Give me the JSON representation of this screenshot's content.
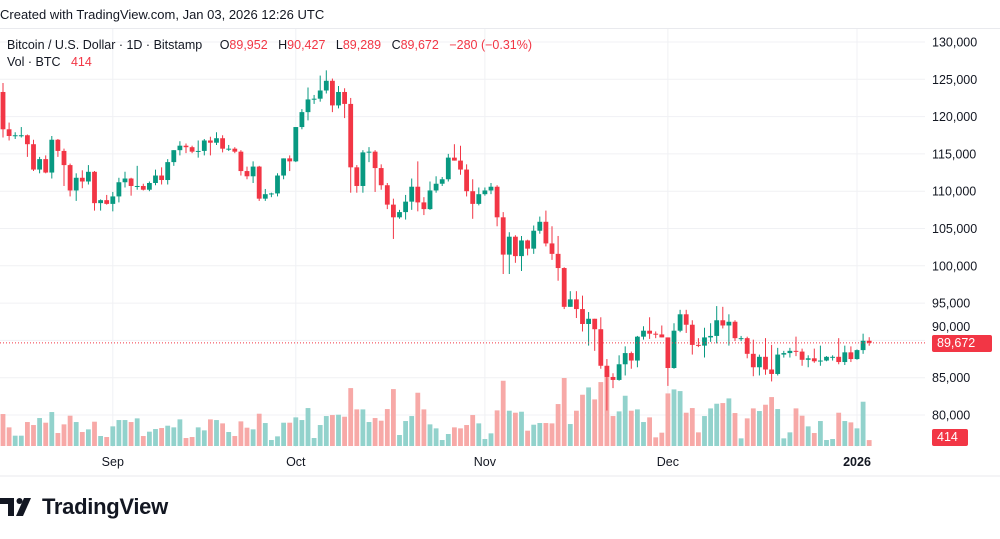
{
  "header": {
    "created_text": "Created with TradingView.com, Jan 03, 2026 12:26 UTC"
  },
  "legend": {
    "symbol": "Bitcoin / U.S. Dollar · 1D · Bitstamp",
    "open_label": "O",
    "open": "89,952",
    "high_label": "H",
    "high": "90,427",
    "low_label": "L",
    "low": "89,289",
    "close_label": "C",
    "close": "89,672",
    "change": "−280 (−0.31%)",
    "volume_label": "Vol · BTC",
    "volume": "414"
  },
  "price_tag": "89,672",
  "volume_tag": "414",
  "footer": {
    "brand": "TradingView"
  },
  "colors": {
    "up": "#089981",
    "down": "#f23645",
    "up_volume": "#92d2cc",
    "down_volume": "#f7a9a7",
    "grid": "#f0f1f4"
  },
  "chart_data": {
    "type": "candlestick",
    "title": "Bitcoin / U.S. Dollar · 1D · Bitstamp",
    "xlabel": "",
    "ylabel": "",
    "ylim": [
      77000,
      131500
    ],
    "y_ticks": [
      "130,000",
      "125,000",
      "120,000",
      "115,000",
      "110,000",
      "105,000",
      "100,000",
      "95,000",
      "90,000",
      "85,000",
      "80,000"
    ],
    "y_tick_values": [
      130000,
      125000,
      120000,
      115000,
      110000,
      105000,
      100000,
      95000,
      90000,
      85000,
      80000
    ],
    "x_ticks": [
      {
        "label": "Sep",
        "date": "2025-09-01"
      },
      {
        "label": "Oct",
        "date": "2025-10-01"
      },
      {
        "label": "Nov",
        "date": "2025-11-01"
      },
      {
        "label": "Dec",
        "date": "2025-12-01"
      },
      {
        "label": "2026",
        "date": "2026-01-01",
        "bold": true
      }
    ],
    "start_date": "2025-08-14",
    "last_price": 89672,
    "grid": true,
    "columns": [
      "open",
      "high",
      "low",
      "close",
      "volume"
    ],
    "candles": [
      [
        123300,
        124500,
        117200,
        118300,
        2237
      ],
      [
        118300,
        119200,
        116800,
        117400,
        1305
      ],
      [
        117400,
        117900,
        117000,
        117500,
        722
      ],
      [
        117500,
        118600,
        117200,
        117500,
        722
      ],
      [
        117500,
        117600,
        114600,
        116300,
        1678
      ],
      [
        116300,
        116900,
        112700,
        112900,
        1468
      ],
      [
        112900,
        114600,
        112400,
        114300,
        1957
      ],
      [
        114300,
        114800,
        112400,
        112500,
        1631
      ],
      [
        112500,
        117400,
        111700,
        116900,
        2377
      ],
      [
        116900,
        117000,
        114600,
        115400,
        909
      ],
      [
        115400,
        115700,
        110700,
        113500,
        1515
      ],
      [
        113500,
        113700,
        109300,
        110100,
        2120
      ],
      [
        110100,
        112400,
        108700,
        111800,
        1678
      ],
      [
        111800,
        112800,
        110400,
        111300,
        979
      ],
      [
        111300,
        113500,
        110900,
        112600,
        1165
      ],
      [
        112600,
        112700,
        107400,
        108400,
        1701
      ],
      [
        108400,
        108900,
        107400,
        108800,
        699
      ],
      [
        108800,
        109500,
        108200,
        108300,
        629
      ],
      [
        108300,
        109900,
        107300,
        109300,
        1375
      ],
      [
        109300,
        111800,
        108500,
        111200,
        1817
      ],
      [
        111200,
        112600,
        110500,
        111700,
        1817
      ],
      [
        111700,
        111800,
        109400,
        110700,
        1678
      ],
      [
        110700,
        113400,
        110200,
        110700,
        1934
      ],
      [
        110700,
        111000,
        110100,
        110200,
        699
      ],
      [
        110200,
        111300,
        110000,
        111100,
        1002
      ],
      [
        111100,
        112900,
        110800,
        112100,
        1188
      ],
      [
        112100,
        113200,
        110900,
        111500,
        1258
      ],
      [
        111500,
        114300,
        110900,
        113900,
        1421
      ],
      [
        113900,
        115500,
        113400,
        115500,
        1305
      ],
      [
        115500,
        116700,
        114800,
        116100,
        1864
      ],
      [
        116100,
        116400,
        115100,
        115900,
        559
      ],
      [
        115900,
        116100,
        115100,
        115300,
        629
      ],
      [
        115300,
        116800,
        114500,
        115400,
        1305
      ],
      [
        115400,
        117000,
        114800,
        116800,
        1095
      ],
      [
        116800,
        117300,
        114800,
        116500,
        1864
      ],
      [
        116500,
        117900,
        116200,
        117100,
        1817
      ],
      [
        117100,
        117500,
        115200,
        115700,
        1584
      ],
      [
        115700,
        116200,
        115400,
        115700,
        979
      ],
      [
        115700,
        115900,
        115100,
        115300,
        699
      ],
      [
        115300,
        115500,
        112100,
        112700,
        1724
      ],
      [
        112700,
        113300,
        111600,
        112000,
        1282
      ],
      [
        112000,
        114000,
        111100,
        113300,
        1165
      ],
      [
        113300,
        113400,
        108700,
        109000,
        2260
      ],
      [
        109000,
        110300,
        108700,
        109600,
        1608
      ],
      [
        109600,
        109800,
        109200,
        109700,
        419
      ],
      [
        109700,
        112400,
        109300,
        112100,
        676
      ],
      [
        112100,
        114400,
        111600,
        114400,
        1631
      ],
      [
        114400,
        114800,
        112700,
        114000,
        1631
      ],
      [
        114000,
        118600,
        113900,
        118600,
        2004
      ],
      [
        118600,
        121000,
        118300,
        120600,
        1817
      ],
      [
        120600,
        123900,
        119500,
        122300,
        2656
      ],
      [
        122300,
        122900,
        121700,
        122400,
        559
      ],
      [
        122400,
        125500,
        122000,
        123500,
        1468
      ],
      [
        123500,
        126200,
        123100,
        124800,
        2097
      ],
      [
        124800,
        125100,
        120600,
        121500,
        2167
      ],
      [
        121500,
        124100,
        121100,
        123300,
        2190
      ],
      [
        123300,
        123800,
        119800,
        121700,
        2050
      ],
      [
        121700,
        122500,
        109800,
        113200,
        4054
      ],
      [
        113200,
        113500,
        109800,
        110700,
        2563
      ],
      [
        110700,
        115500,
        109800,
        115200,
        2563
      ],
      [
        115200,
        115900,
        113900,
        115300,
        1678
      ],
      [
        115300,
        115500,
        109900,
        113100,
        1957
      ],
      [
        113100,
        113600,
        110200,
        110800,
        1771
      ],
      [
        110800,
        111100,
        107600,
        108200,
        2586
      ],
      [
        108200,
        109000,
        103600,
        106500,
        3984
      ],
      [
        106500,
        107500,
        106300,
        107200,
        769
      ],
      [
        107200,
        109500,
        106200,
        108600,
        1748
      ],
      [
        108600,
        111700,
        107500,
        110600,
        2097
      ],
      [
        110600,
        114000,
        107300,
        108500,
        3728
      ],
      [
        108500,
        109200,
        106800,
        107600,
        2563
      ],
      [
        107600,
        111300,
        107500,
        110100,
        1515
      ],
      [
        110100,
        112000,
        109800,
        111000,
        1235
      ],
      [
        111000,
        111900,
        110700,
        111600,
        419
      ],
      [
        111600,
        115000,
        111300,
        114500,
        839
      ],
      [
        114500,
        116300,
        114100,
        114100,
        1305
      ],
      [
        114100,
        116100,
        112200,
        112900,
        1235
      ],
      [
        112900,
        113600,
        109300,
        110000,
        1468
      ],
      [
        110000,
        111600,
        106300,
        108300,
        2167
      ],
      [
        108300,
        110500,
        108100,
        109600,
        1584
      ],
      [
        109600,
        110500,
        109400,
        110100,
        489
      ],
      [
        110100,
        111100,
        109600,
        110600,
        886
      ],
      [
        110600,
        110800,
        105300,
        106500,
        2493
      ],
      [
        106500,
        107200,
        98900,
        101500,
        4567
      ],
      [
        101500,
        104500,
        98900,
        103900,
        2470
      ],
      [
        103900,
        104100,
        100400,
        101300,
        2330
      ],
      [
        101300,
        104000,
        99300,
        103400,
        2400
      ],
      [
        103400,
        103500,
        101400,
        102300,
        1072
      ],
      [
        102300,
        105400,
        101600,
        104700,
        1491
      ],
      [
        104700,
        106600,
        104300,
        105900,
        1608
      ],
      [
        105900,
        107400,
        102600,
        103000,
        1608
      ],
      [
        103000,
        105300,
        100800,
        101600,
        1584
      ],
      [
        101600,
        104000,
        98000,
        99700,
        2936
      ],
      [
        99700,
        99800,
        94200,
        94500,
        4760
      ],
      [
        94500,
        96600,
        94500,
        95500,
        1538
      ],
      [
        95500,
        96600,
        93000,
        94200,
        2470
      ],
      [
        94200,
        96000,
        91200,
        92200,
        3588
      ],
      [
        92200,
        93800,
        89300,
        92900,
        4101
      ],
      [
        92900,
        92900,
        88600,
        91500,
        3262
      ],
      [
        91500,
        93100,
        86200,
        86600,
        4474
      ],
      [
        86600,
        87500,
        80600,
        85100,
        5320
      ],
      [
        85100,
        85600,
        83600,
        84700,
        2097
      ],
      [
        84700,
        88000,
        84600,
        86800,
        2423
      ],
      [
        86800,
        89200,
        85300,
        88300,
        3518
      ],
      [
        88300,
        88500,
        86200,
        87300,
        2470
      ],
      [
        87300,
        90600,
        86400,
        90500,
        2563
      ],
      [
        90500,
        91900,
        90100,
        91300,
        1678
      ],
      [
        91300,
        93100,
        90200,
        90900,
        2004
      ],
      [
        90900,
        91200,
        90300,
        90800,
        606
      ],
      [
        90800,
        92000,
        90400,
        90400,
        932
      ],
      [
        90400,
        90400,
        83900,
        86300,
        3681
      ],
      [
        86300,
        92300,
        86200,
        91300,
        3961
      ],
      [
        91300,
        94100,
        91100,
        93500,
        3845
      ],
      [
        93500,
        94100,
        91000,
        92100,
        2330
      ],
      [
        92100,
        92700,
        88100,
        89400,
        2656
      ],
      [
        89400,
        90300,
        89100,
        89300,
        955
      ],
      [
        89300,
        91700,
        87700,
        90400,
        2097
      ],
      [
        90400,
        92300,
        89800,
        90600,
        2633
      ],
      [
        90600,
        94600,
        89600,
        92700,
        2959
      ],
      [
        92700,
        94500,
        91600,
        92000,
        3006
      ],
      [
        92000,
        93500,
        89300,
        92500,
        3332
      ],
      [
        92500,
        92700,
        89900,
        90300,
        2307
      ],
      [
        90300,
        90600,
        89900,
        90300,
        536
      ],
      [
        90300,
        90500,
        87600,
        88200,
        1934
      ],
      [
        88200,
        90100,
        85200,
        86400,
        2633
      ],
      [
        86400,
        88100,
        85300,
        87800,
        2447
      ],
      [
        87800,
        90300,
        85400,
        86100,
        2889
      ],
      [
        86100,
        89400,
        84500,
        85500,
        3425
      ],
      [
        85500,
        89000,
        85300,
        88100,
        2586
      ],
      [
        88100,
        88600,
        87700,
        88300,
        536
      ],
      [
        88300,
        89000,
        87700,
        88600,
        955
      ],
      [
        88600,
        90500,
        87900,
        88500,
        2633
      ],
      [
        88500,
        88900,
        86600,
        87400,
        2120
      ],
      [
        87400,
        88000,
        86400,
        87600,
        1375
      ],
      [
        87600,
        88900,
        87000,
        87200,
        909
      ],
      [
        87200,
        89300,
        86600,
        87300,
        1748
      ],
      [
        87300,
        87900,
        87200,
        87800,
        419
      ],
      [
        87800,
        88000,
        87300,
        87800,
        489
      ],
      [
        87800,
        90300,
        86800,
        87100,
        2330
      ],
      [
        87100,
        89300,
        86700,
        88400,
        1748
      ],
      [
        88400,
        89200,
        87100,
        87500,
        1654
      ],
      [
        87500,
        88800,
        87400,
        88700,
        1235
      ],
      [
        88700,
        90900,
        88200,
        89950,
        3099
      ],
      [
        89952,
        90427,
        89289,
        89672,
        414
      ]
    ]
  }
}
